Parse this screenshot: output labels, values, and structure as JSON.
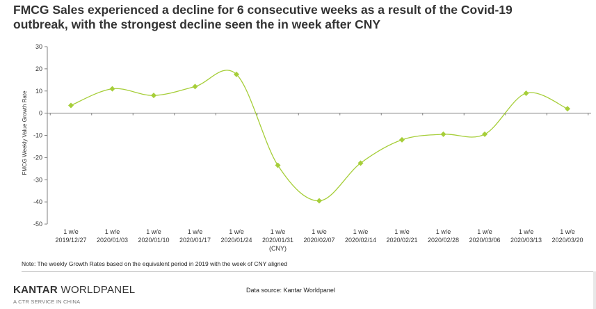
{
  "title": {
    "line1": "FMCG Sales experienced a decline for 6 consecutive weeks as a result of the Covid-19",
    "line2": "outbreak, with the strongest decline seen the in week after CNY"
  },
  "chart_data": {
    "type": "line",
    "ylabel": "FMCG Weekly  Value Growth Rate",
    "xlabel": "",
    "ylim": [
      -50,
      30
    ],
    "yticks": [
      30,
      20,
      10,
      0,
      -10,
      -20,
      -30,
      -40,
      -50
    ],
    "grid": false,
    "legend": "none",
    "line_color": "#a6ce39",
    "marker": "diamond",
    "categories": [
      {
        "top": "1 w/e",
        "bottom": "2019/12/27",
        "extra": ""
      },
      {
        "top": "1 w/e",
        "bottom": "2020/01/03",
        "extra": ""
      },
      {
        "top": "1 w/e",
        "bottom": "2020/01/10",
        "extra": ""
      },
      {
        "top": "1 w/e",
        "bottom": "2020/01/17",
        "extra": ""
      },
      {
        "top": "1 w/e",
        "bottom": "2020/01/24",
        "extra": ""
      },
      {
        "top": "1 w/e",
        "bottom": "2020/01/31",
        "extra": "(CNY)"
      },
      {
        "top": "1 w/e",
        "bottom": "2020/02/07",
        "extra": ""
      },
      {
        "top": "1 w/e",
        "bottom": "2020/02/14",
        "extra": ""
      },
      {
        "top": "1 w/e",
        "bottom": "2020/02/21",
        "extra": ""
      },
      {
        "top": "1 w/e",
        "bottom": "2020/02/28",
        "extra": ""
      },
      {
        "top": "1 w/e",
        "bottom": "2020/03/06",
        "extra": ""
      },
      {
        "top": "1 w/e",
        "bottom": "2020/03/13",
        "extra": ""
      },
      {
        "top": "1 w/e",
        "bottom": "2020/03/20",
        "extra": ""
      }
    ],
    "series": [
      {
        "values": [
          3.5,
          11,
          8,
          12,
          17.5,
          -23.5,
          -39.5,
          -22.5,
          -12,
          -9.5,
          -9.5,
          9,
          2
        ]
      }
    ]
  },
  "note": "Note: The weekly Growth Rates based on the equivalent period in 2019 with the week of CNY aligned",
  "footer": {
    "brand_bold": "KANTAR",
    "brand_rest": " WORLDPANEL",
    "brand_sub": "A CTR SERVICE IN CHINA",
    "source": "Data source: Kantar Worldpanel"
  }
}
